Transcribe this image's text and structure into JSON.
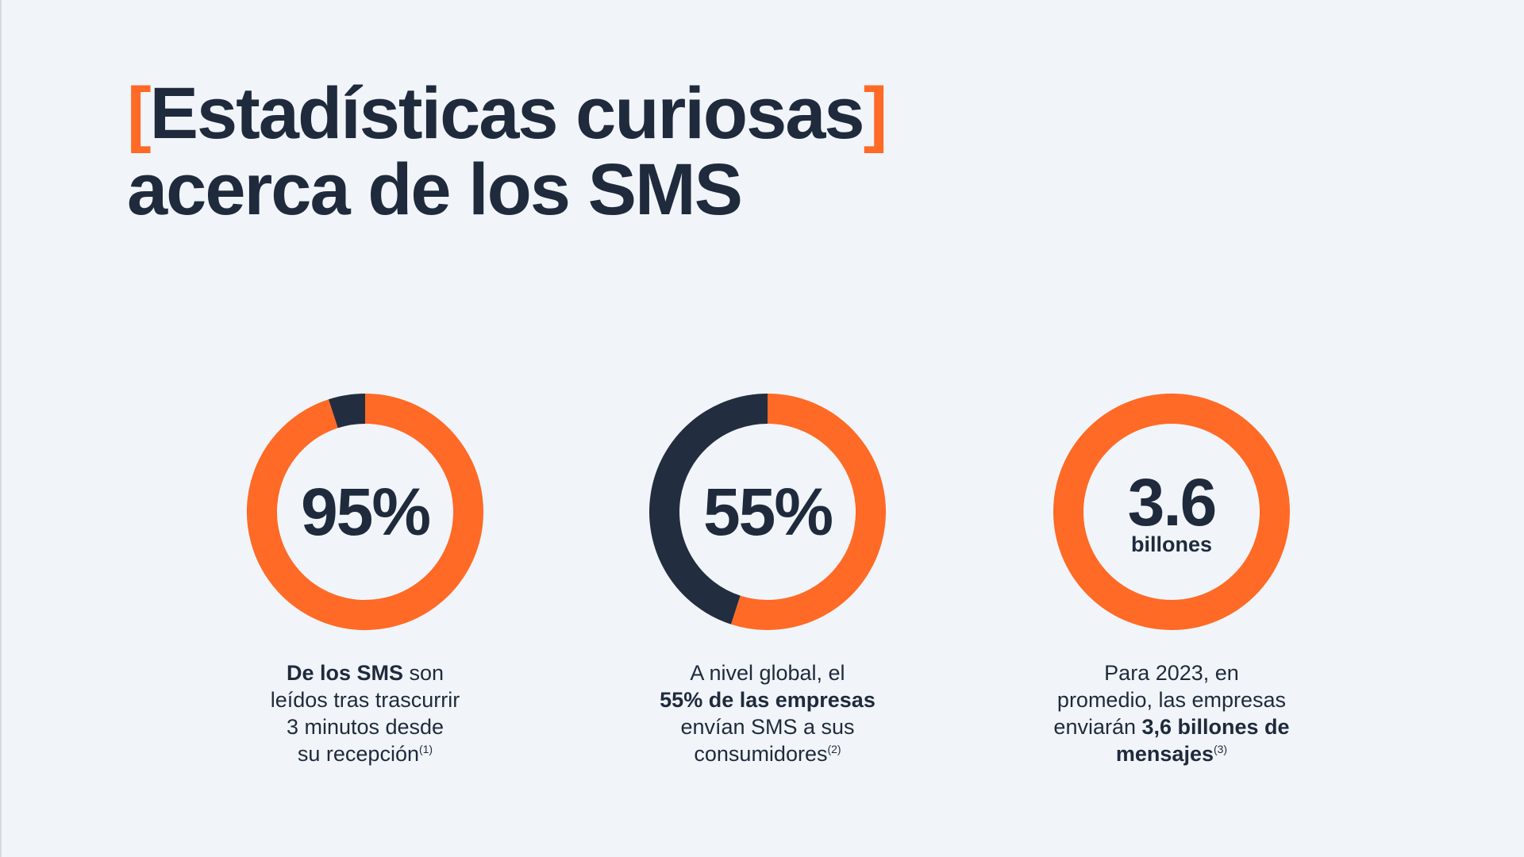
{
  "title": {
    "open_bracket": "[",
    "line1": "Estadísticas curiosas",
    "close_bracket": "]",
    "line2": "acerca de los SMS"
  },
  "colors": {
    "accent": "#ff6a26",
    "dark": "#222d40",
    "background": "#f1f5f9"
  },
  "chart_data": [
    {
      "type": "pie",
      "label": "95%",
      "slices": [
        {
          "value": 95,
          "color": "#ff6a26"
        },
        {
          "value": 5,
          "color": "#222d40"
        }
      ]
    },
    {
      "type": "pie",
      "label": "55%",
      "slices": [
        {
          "value": 55,
          "color": "#ff6a26"
        },
        {
          "value": 45,
          "color": "#222d40"
        }
      ]
    },
    {
      "type": "pie",
      "label": "3.6",
      "unit": "billones",
      "slices": [
        {
          "value": 100,
          "color": "#ff6a26"
        }
      ]
    }
  ],
  "captions": [
    {
      "lines": [
        [
          {
            "t": "De los SMS",
            "b": true
          },
          {
            "t": " son"
          }
        ],
        [
          {
            "t": "leídos tras trascurrir"
          }
        ],
        [
          {
            "t": "3 minutos desde"
          }
        ],
        [
          {
            "t": "su recepción"
          },
          {
            "t": "(1)",
            "sup": true
          }
        ]
      ]
    },
    {
      "lines": [
        [
          {
            "t": "A nivel global, el"
          }
        ],
        [
          {
            "t": "55% de las empresas",
            "b": true
          }
        ],
        [
          {
            "t": "envían SMS a sus"
          }
        ],
        [
          {
            "t": "consumidores"
          },
          {
            "t": "(2)",
            "sup": true
          }
        ]
      ]
    },
    {
      "lines": [
        [
          {
            "t": "Para 2023, en"
          }
        ],
        [
          {
            "t": "promedio, las empresas"
          }
        ],
        [
          {
            "t": "enviarán "
          },
          {
            "t": "3,6 billones de",
            "b": true
          }
        ],
        [
          {
            "t": "mensajes",
            "b": true
          },
          {
            "t": "(3)",
            "sup": true
          }
        ]
      ]
    }
  ]
}
